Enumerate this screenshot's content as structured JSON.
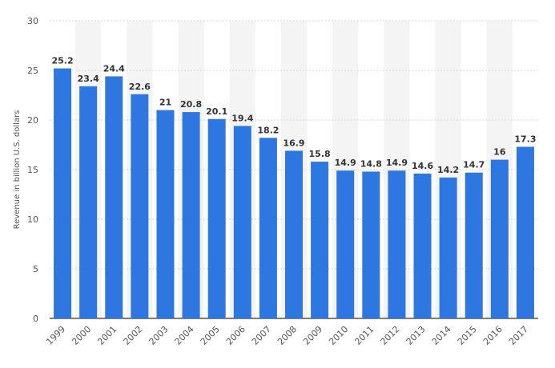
{
  "chart_data": {
    "type": "bar",
    "ylabel": "Revenue in billion U.S. dollars",
    "xlabel": "",
    "ylim": [
      0,
      30
    ],
    "yticks": [
      0,
      5,
      10,
      15,
      20,
      25,
      30
    ],
    "grid": true,
    "bar_color": "#2e77e0",
    "band_color": "#f4f4f4",
    "categories": [
      "1999",
      "2000",
      "2001",
      "2002",
      "2003",
      "2004",
      "2005",
      "2006",
      "2007",
      "2008",
      "2009",
      "2010",
      "2011",
      "2012",
      "2013",
      "2014",
      "2015",
      "2016",
      "2017"
    ],
    "values": [
      25.2,
      23.4,
      24.4,
      22.6,
      21,
      20.8,
      20.1,
      19.4,
      18.2,
      16.9,
      15.8,
      14.9,
      14.8,
      14.9,
      14.6,
      14.2,
      14.7,
      16,
      17.3
    ]
  }
}
